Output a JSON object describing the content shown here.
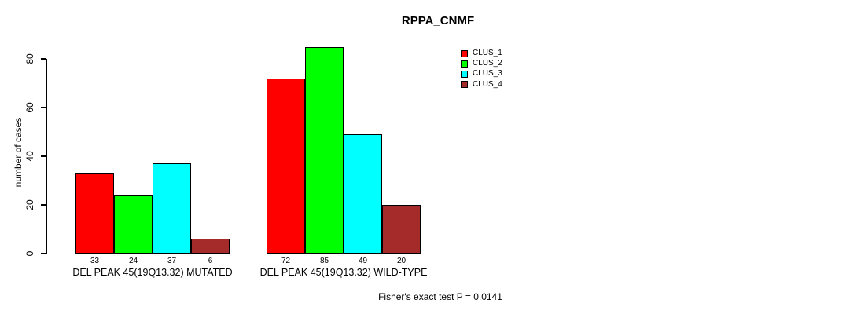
{
  "chart_data": {
    "type": "bar",
    "title": "RPPA_CNMF",
    "xlabel": "",
    "ylabel": "number of cases",
    "ylim": [
      0,
      88
    ],
    "yticks": [
      0,
      20,
      40,
      60,
      80
    ],
    "grid": false,
    "legend_position": "top-right",
    "show_bar_values": true,
    "categories": [
      "DEL PEAK 45(19Q13.32) MUTATED",
      "DEL PEAK 45(19Q13.32) WILD-TYPE"
    ],
    "series": [
      {
        "name": "CLUS_1",
        "color": "#FF0000",
        "values": [
          33,
          72
        ]
      },
      {
        "name": "CLUS_2",
        "color": "#00FF00",
        "values": [
          24,
          85
        ]
      },
      {
        "name": "CLUS_3",
        "color": "#00FFFF",
        "values": [
          37,
          49
        ]
      },
      {
        "name": "CLUS_4",
        "color": "#A52A2A",
        "values": [
          6,
          20
        ]
      }
    ],
    "annotation": "Fisher's exact test P = 0.0141"
  },
  "colors": {
    "background": "#FFFFFF",
    "axis": "#000000",
    "bar_border": "#000000",
    "text": "#000000"
  }
}
